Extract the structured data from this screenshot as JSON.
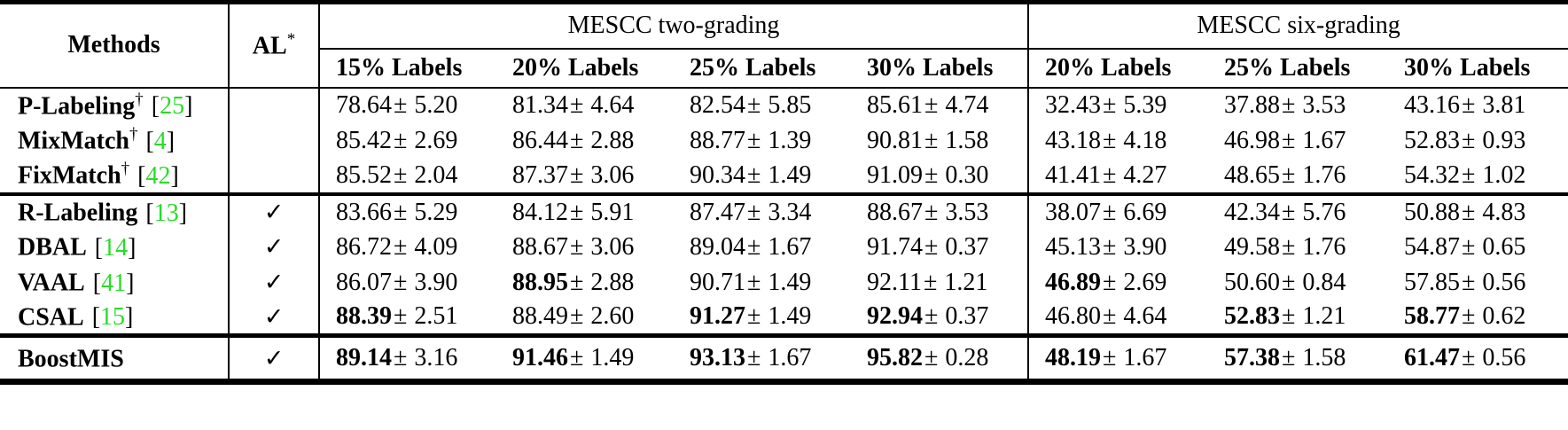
{
  "sym": {
    "pm": "±"
  },
  "colors": {
    "citation_green": "#28dc28"
  },
  "header": {
    "methods": "Methods",
    "al": "AL",
    "al_sup": "*",
    "two_grading": {
      "title": "MESCC two-grading",
      "columns": [
        "15% Labels",
        "20% Labels",
        "25% Labels",
        "30% Labels"
      ]
    },
    "six_grading": {
      "title": "MESCC six-grading",
      "columns": [
        "20% Labels",
        "25% Labels",
        "30% Labels"
      ]
    }
  },
  "chart_data": {
    "type": "table",
    "title": "",
    "column_groups": [
      "Methods",
      "AL*",
      "MESCC two-grading: 15% Labels",
      "MESCC two-grading: 20% Labels",
      "MESCC two-grading: 25% Labels",
      "MESCC two-grading: 30% Labels",
      "MESCC six-grading: 20% Labels",
      "MESCC six-grading: 25% Labels",
      "MESCC six-grading: 30% Labels"
    ]
  },
  "rows": [
    {
      "method": "P-Labeling",
      "sup": "†",
      "cite_open": "[",
      "cite_num": "25",
      "cite_close": "]",
      "al": "",
      "cells": [
        {
          "mean": "78.64",
          "std": "5.20",
          "bold": false
        },
        {
          "mean": "81.34",
          "std": "4.64",
          "bold": false
        },
        {
          "mean": "82.54",
          "std": "5.85",
          "bold": false
        },
        {
          "mean": "85.61",
          "std": "4.74",
          "bold": false
        },
        {
          "mean": "32.43",
          "std": "5.39",
          "bold": false
        },
        {
          "mean": "37.88",
          "std": "3.53",
          "bold": false
        },
        {
          "mean": "43.16",
          "std": "3.81",
          "bold": false
        }
      ]
    },
    {
      "method": "MixMatch",
      "sup": "†",
      "cite_open": "[",
      "cite_num": "4",
      "cite_close": "]",
      "al": "",
      "cells": [
        {
          "mean": "85.42",
          "std": "2.69",
          "bold": false
        },
        {
          "mean": "86.44",
          "std": "2.88",
          "bold": false
        },
        {
          "mean": "88.77",
          "std": "1.39",
          "bold": false
        },
        {
          "mean": "90.81",
          "std": "1.58",
          "bold": false
        },
        {
          "mean": "43.18",
          "std": "4.18",
          "bold": false
        },
        {
          "mean": "46.98",
          "std": "1.67",
          "bold": false
        },
        {
          "mean": "52.83",
          "std": "0.93",
          "bold": false
        }
      ]
    },
    {
      "method": "FixMatch",
      "sup": "†",
      "cite_open": "[",
      "cite_num": "42",
      "cite_close": "]",
      "al": "",
      "cells": [
        {
          "mean": "85.52",
          "std": "2.04",
          "bold": false
        },
        {
          "mean": "87.37",
          "std": "3.06",
          "bold": false
        },
        {
          "mean": "90.34",
          "std": "1.49",
          "bold": false
        },
        {
          "mean": "91.09",
          "std": "0.30",
          "bold": false
        },
        {
          "mean": "41.41",
          "std": "4.27",
          "bold": false
        },
        {
          "mean": "48.65",
          "std": "1.76",
          "bold": false
        },
        {
          "mean": "54.32",
          "std": "1.02",
          "bold": false
        }
      ]
    },
    {
      "method": "R-Labeling",
      "sup": "",
      "cite_open": "[",
      "cite_num": "13",
      "cite_close": "]",
      "al": "✓",
      "cells": [
        {
          "mean": "83.66",
          "std": "5.29",
          "bold": false
        },
        {
          "mean": "84.12",
          "std": "5.91",
          "bold": false
        },
        {
          "mean": "87.47",
          "std": "3.34",
          "bold": false
        },
        {
          "mean": "88.67",
          "std": "3.53",
          "bold": false
        },
        {
          "mean": "38.07",
          "std": "6.69",
          "bold": false
        },
        {
          "mean": "42.34",
          "std": "5.76",
          "bold": false
        },
        {
          "mean": "50.88",
          "std": "4.83",
          "bold": false
        }
      ]
    },
    {
      "method": "DBAL",
      "sup": "",
      "cite_open": "[",
      "cite_num": "14",
      "cite_close": "]",
      "al": "✓",
      "cells": [
        {
          "mean": "86.72",
          "std": "4.09",
          "bold": false
        },
        {
          "mean": "88.67",
          "std": "3.06",
          "bold": false
        },
        {
          "mean": "89.04",
          "std": "1.67",
          "bold": false
        },
        {
          "mean": "91.74",
          "std": "0.37",
          "bold": false
        },
        {
          "mean": "45.13",
          "std": "3.90",
          "bold": false
        },
        {
          "mean": "49.58",
          "std": "1.76",
          "bold": false
        },
        {
          "mean": "54.87",
          "std": "0.65",
          "bold": false
        }
      ]
    },
    {
      "method": "VAAL",
      "sup": "",
      "cite_open": "[",
      "cite_num": "41",
      "cite_close": "]",
      "al": "✓",
      "cells": [
        {
          "mean": "86.07",
          "std": "3.90",
          "bold": false
        },
        {
          "mean": "88.95",
          "std": "2.88",
          "bold": true
        },
        {
          "mean": "90.71",
          "std": "1.49",
          "bold": false
        },
        {
          "mean": "92.11",
          "std": "1.21",
          "bold": false
        },
        {
          "mean": "46.89",
          "std": "2.69",
          "bold": true
        },
        {
          "mean": "50.60",
          "std": "0.84",
          "bold": false
        },
        {
          "mean": "57.85",
          "std": "0.56",
          "bold": false
        }
      ]
    },
    {
      "method": "CSAL",
      "sup": "",
      "cite_open": "[",
      "cite_num": "15",
      "cite_close": "]",
      "al": "✓",
      "cells": [
        {
          "mean": "88.39",
          "std": "2.51",
          "bold": true
        },
        {
          "mean": "88.49",
          "std": "2.60",
          "bold": false
        },
        {
          "mean": "91.27",
          "std": "1.49",
          "bold": true
        },
        {
          "mean": "92.94",
          "std": "0.37",
          "bold": true
        },
        {
          "mean": "46.80",
          "std": "4.64",
          "bold": false
        },
        {
          "mean": "52.83",
          "std": "1.21",
          "bold": true
        },
        {
          "mean": "58.77",
          "std": "0.62",
          "bold": true
        }
      ]
    },
    {
      "method": "BoostMIS",
      "sup": "",
      "cite_open": "",
      "cite_num": "",
      "cite_close": "",
      "al": "✓",
      "cells": [
        {
          "mean": "89.14",
          "std": "3.16",
          "bold": true
        },
        {
          "mean": "91.46",
          "std": "1.49",
          "bold": true
        },
        {
          "mean": "93.13",
          "std": "1.67",
          "bold": true
        },
        {
          "mean": "95.82",
          "std": "0.28",
          "bold": true
        },
        {
          "mean": "48.19",
          "std": "1.67",
          "bold": true
        },
        {
          "mean": "57.38",
          "std": "1.58",
          "bold": true
        },
        {
          "mean": "61.47",
          "std": "0.56",
          "bold": true
        }
      ]
    }
  ]
}
